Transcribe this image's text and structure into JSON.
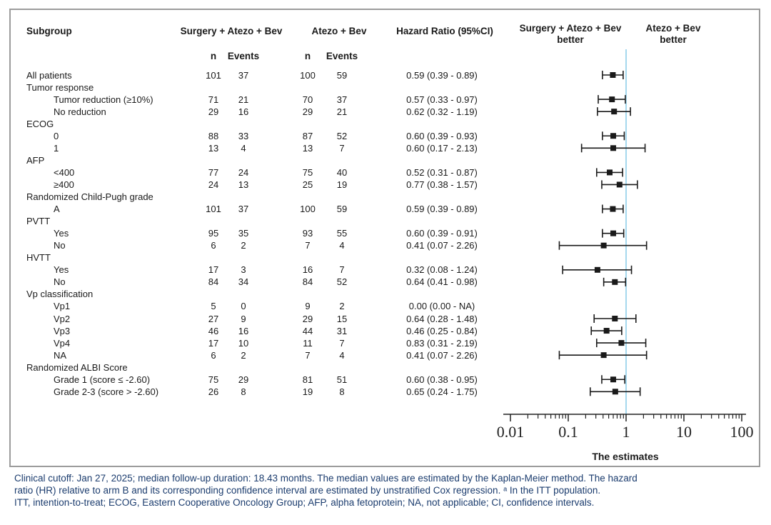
{
  "figure": {
    "columns": {
      "subgroup": "Subgroup",
      "arm_a": "Surgery + Atezo + Bev",
      "arm_b": "Atezo + Bev",
      "n": "n",
      "events": "Events",
      "hazard_ratio": "Hazard Ratio (95%CI)"
    },
    "plot_headers": {
      "left_better_line1": "Surgery + Atezo + Bev",
      "left_better_line2": "better",
      "right_better_line1": "Atezo + Bev",
      "right_better_line2": "better"
    },
    "colors": {
      "reference_line": "#a5d8ee",
      "marker": "#1a1a1a",
      "axis": "#222222",
      "border": "#9c9c9c",
      "footnote_text": "#1b3c6e"
    }
  },
  "chart_data": {
    "type": "scatter",
    "subtype": "forest-plot",
    "x_scale": "log10",
    "x_ticks": [
      "0.01",
      "0.1",
      "1",
      "10",
      "100"
    ],
    "x_tick_values": [
      0.01,
      0.1,
      1,
      10,
      100
    ],
    "xlim": [
      0.01,
      100
    ],
    "xlabel": "The estimates",
    "reference_line": 1,
    "grid": false,
    "rows": [
      {
        "label": "All patients",
        "group": false,
        "indent": 0,
        "n1": 101,
        "events1": 37,
        "n2": 100,
        "events2": 59,
        "hr_label": "0.59 (0.39 - 0.89)",
        "hr": 0.59,
        "lo": 0.39,
        "hi": 0.89
      },
      {
        "label": "Tumor response",
        "group": true
      },
      {
        "label": "Tumor reduction (≥10%)",
        "group": false,
        "indent": 1,
        "n1": 71,
        "events1": 21,
        "n2": 70,
        "events2": 37,
        "hr_label": "0.57 (0.33 - 0.97)",
        "hr": 0.57,
        "lo": 0.33,
        "hi": 0.97
      },
      {
        "label": "No reduction",
        "group": false,
        "indent": 1,
        "n1": 29,
        "events1": 16,
        "n2": 29,
        "events2": 21,
        "hr_label": "0.62 (0.32 - 1.19)",
        "hr": 0.62,
        "lo": 0.32,
        "hi": 1.19
      },
      {
        "label": "ECOG",
        "group": true
      },
      {
        "label": "0",
        "group": false,
        "indent": 1,
        "n1": 88,
        "events1": 33,
        "n2": 87,
        "events2": 52,
        "hr_label": "0.60 (0.39 - 0.93)",
        "hr": 0.6,
        "lo": 0.39,
        "hi": 0.93
      },
      {
        "label": "1",
        "group": false,
        "indent": 1,
        "n1": 13,
        "events1": 4,
        "n2": 13,
        "events2": 7,
        "hr_label": "0.60 (0.17 - 2.13)",
        "hr": 0.6,
        "lo": 0.17,
        "hi": 2.13
      },
      {
        "label": "AFP",
        "group": true
      },
      {
        "label": "<400",
        "group": false,
        "indent": 1,
        "n1": 77,
        "events1": 24,
        "n2": 75,
        "events2": 40,
        "hr_label": "0.52 (0.31 - 0.87)",
        "hr": 0.52,
        "lo": 0.31,
        "hi": 0.87
      },
      {
        "label": "≥400",
        "group": false,
        "indent": 1,
        "n1": 24,
        "events1": 13,
        "n2": 25,
        "events2": 19,
        "hr_label": "0.77 (0.38 - 1.57)",
        "hr": 0.77,
        "lo": 0.38,
        "hi": 1.57
      },
      {
        "label": "Randomized Child-Pugh grade",
        "group": true
      },
      {
        "label": "A",
        "group": false,
        "indent": 1,
        "n1": 101,
        "events1": 37,
        "n2": 100,
        "events2": 59,
        "hr_label": "0.59 (0.39 - 0.89)",
        "hr": 0.59,
        "lo": 0.39,
        "hi": 0.89
      },
      {
        "label": "PVTT",
        "group": true
      },
      {
        "label": "Yes",
        "group": false,
        "indent": 1,
        "n1": 95,
        "events1": 35,
        "n2": 93,
        "events2": 55,
        "hr_label": "0.60 (0.39 - 0.91)",
        "hr": 0.6,
        "lo": 0.39,
        "hi": 0.91
      },
      {
        "label": "No",
        "group": false,
        "indent": 1,
        "n1": 6,
        "events1": 2,
        "n2": 7,
        "events2": 4,
        "hr_label": "0.41 (0.07 - 2.26)",
        "hr": 0.41,
        "lo": 0.07,
        "hi": 2.26
      },
      {
        "label": "HVTT",
        "group": true
      },
      {
        "label": "Yes",
        "group": false,
        "indent": 1,
        "n1": 17,
        "events1": 3,
        "n2": 16,
        "events2": 7,
        "hr_label": "0.32 (0.08 - 1.24)",
        "hr": 0.32,
        "lo": 0.08,
        "hi": 1.24
      },
      {
        "label": "No",
        "group": false,
        "indent": 1,
        "n1": 84,
        "events1": 34,
        "n2": 84,
        "events2": 52,
        "hr_label": "0.64 (0.41 - 0.98)",
        "hr": 0.64,
        "lo": 0.41,
        "hi": 0.98
      },
      {
        "label": "Vp classification",
        "group": true
      },
      {
        "label": "Vp1",
        "group": false,
        "indent": 1,
        "n1": 5,
        "events1": 0,
        "n2": 9,
        "events2": 2,
        "hr_label": "0.00 (0.00 - NA)",
        "hr": null,
        "lo": null,
        "hi": null
      },
      {
        "label": "Vp2",
        "group": false,
        "indent": 1,
        "n1": 27,
        "events1": 9,
        "n2": 29,
        "events2": 15,
        "hr_label": "0.64 (0.28 - 1.48)",
        "hr": 0.64,
        "lo": 0.28,
        "hi": 1.48
      },
      {
        "label": "Vp3",
        "group": false,
        "indent": 1,
        "n1": 46,
        "events1": 16,
        "n2": 44,
        "events2": 31,
        "hr_label": "0.46 (0.25 - 0.84)",
        "hr": 0.46,
        "lo": 0.25,
        "hi": 0.84
      },
      {
        "label": "Vp4",
        "group": false,
        "indent": 1,
        "n1": 17,
        "events1": 10,
        "n2": 11,
        "events2": 7,
        "hr_label": "0.83 (0.31 - 2.19)",
        "hr": 0.83,
        "lo": 0.31,
        "hi": 2.19
      },
      {
        "label": "NA",
        "group": false,
        "indent": 1,
        "n1": 6,
        "events1": 2,
        "n2": 7,
        "events2": 4,
        "hr_label": "0.41 (0.07 - 2.26)",
        "hr": 0.41,
        "lo": 0.07,
        "hi": 2.26
      },
      {
        "label": "Randomized ALBI Score",
        "group": true
      },
      {
        "label": "Grade 1 (score ≤ -2.60)",
        "group": false,
        "indent": 1,
        "n1": 75,
        "events1": 29,
        "n2": 81,
        "events2": 51,
        "hr_label": "0.60 (0.38 - 0.95)",
        "hr": 0.6,
        "lo": 0.38,
        "hi": 0.95
      },
      {
        "label": "Grade 2-3 (score > -2.60)",
        "group": false,
        "indent": 1,
        "n1": 26,
        "events1": 8,
        "n2": 19,
        "events2": 8,
        "hr_label": "0.65 (0.24 - 1.75)",
        "hr": 0.65,
        "lo": 0.24,
        "hi": 1.75
      }
    ]
  },
  "footnote": {
    "lines": [
      "Clinical cutoff: Jan 27, 2025; median follow-up duration: 18.43 months. The median values are estimated by the Kaplan-Meier method. The hazard",
      "ratio (HR) relative to arm B and its corresponding confidence interval are estimated by unstratified Cox regression. ᵃ In the ITT population.",
      "ITT, intention-to-treat; ECOG, Eastern Cooperative Oncology Group; AFP, alpha fetoprotein; NA, not applicable; CI, confidence intervals."
    ]
  }
}
